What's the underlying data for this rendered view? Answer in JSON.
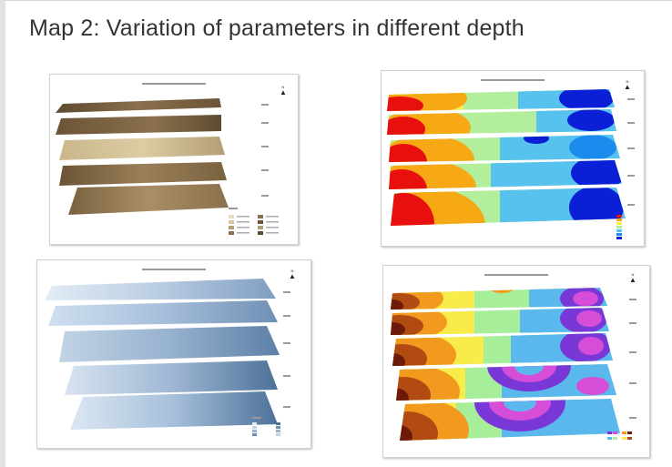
{
  "slide": {
    "title": "Map 2: Variation of parameters in different depth"
  },
  "north_arrow": {
    "arrow": "▲",
    "letter": "N"
  },
  "icons": {
    "north_arrow": "north-arrow-icon"
  },
  "colors": {
    "background": "#ffffff",
    "title_text": "#333333",
    "panel_border": "#cfcfcf"
  },
  "maps": [
    {
      "id": "brown",
      "palette": [
        "#6b5436",
        "#8a704c",
        "#b49e74",
        "#d6c69f",
        "#e6dbbd"
      ]
    },
    {
      "id": "zones",
      "palette": [
        "#e8100e",
        "#f7a815",
        "#f6ee4e",
        "#b3ee9c",
        "#58c2ee",
        "#1b8cee",
        "#0a1fd6"
      ]
    },
    {
      "id": "blue",
      "palette": [
        "#e3ecf5",
        "#c2d3e5",
        "#97b2cf",
        "#6f8fb4",
        "#4d7199"
      ]
    },
    {
      "id": "contours",
      "palette": [
        "#6d1a0a",
        "#b24b12",
        "#f29a1d",
        "#f9eb4a",
        "#a6ee9a",
        "#5ab8ec",
        "#7a37d8",
        "#d64dd8"
      ]
    }
  ]
}
